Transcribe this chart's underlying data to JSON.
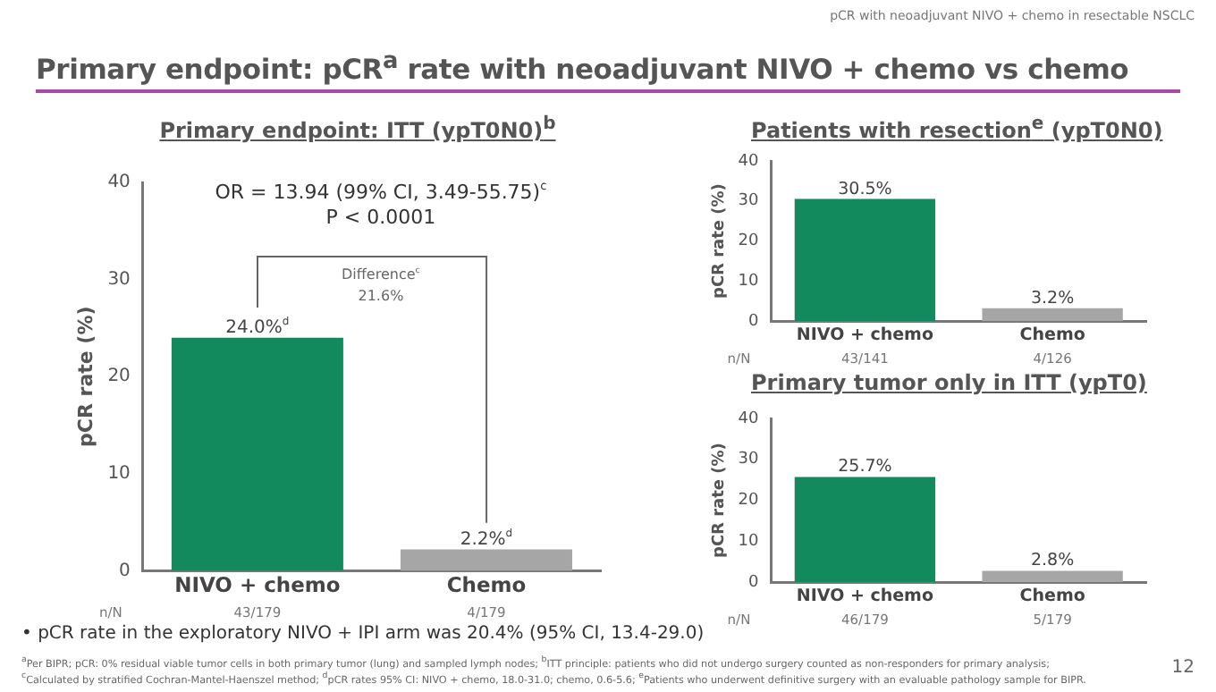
{
  "chart_data": [
    {
      "type": "other",
      "title": "Primary endpoint: pCR$^{a}$ rate with neoadjuvant NIVO + chemo vs chemo",
      "annotations": [
        "pCR with neoadjuvant NIVO + chemo in resectable NSCLC",
        "• pCR rate in the exploratory NIVO + IPI arm was 20.4% (95% CI, 13.4-29.0)",
        "$^{a}$Per BIPR; pCR: 0% residual viable tumor cells in both primary tumor (lung) and sampled lymph nodes; $^{b}$ITT principle: patients who did not undergo surgery counted as non-responders for primary analysis;",
        "$^{c}$Calculated by stratified Cochran-Mantel-Haenszel method; $^{d}$pCR rates 95% CI: NIVO + chemo, 18.0-31.0; chemo, 0.6-5.6; $^{e}$Patients who underwent definitive surgery with an evaluable pathology sample for BIPR.",
        "12"
      ]
    },
    {
      "type": "bar",
      "title": "Primary endpoint: ITT (ypT0N0)$^{b}$",
      "ylabel": "pCR rate (%)",
      "categories": [
        "NIVO + chemo",
        "Chemo"
      ],
      "values": [
        24.0,
        2.2
      ],
      "colors": [
        "#138a5e",
        "#a6a6a6"
      ],
      "value_labels": [
        "24.0%$^{d}$",
        "2.2%$^{d}$"
      ],
      "ylim": [
        0,
        40
      ],
      "yticks": [
        0,
        10,
        20,
        30,
        40
      ],
      "annotations": [
        "n/N",
        "43/179",
        "4/179",
        "OR = 13.94 (99% CI, 3.49-55.75)$^{c}$",
        "P < 0.0001",
        "Difference$^{c}$\n21.6%"
      ]
    },
    {
      "type": "bar",
      "title": "Patients with resection$^{e}$ (ypT0N0)",
      "ylabel": "pCR rate (%)",
      "categories": [
        "NIVO + chemo",
        "Chemo"
      ],
      "values": [
        30.5,
        3.2
      ],
      "colors": [
        "#138a5e",
        "#a6a6a6"
      ],
      "value_labels": [
        "30.5%",
        "3.2%"
      ],
      "ylim": [
        0,
        40
      ],
      "yticks": [
        0,
        10,
        20,
        30,
        40
      ],
      "annotations": [
        "n/N",
        "43/141",
        "4/126"
      ]
    },
    {
      "type": "bar",
      "title": "Primary tumor only in ITT (ypT0)",
      "ylabel": "pCR rate (%)",
      "categories": [
        "NIVO + chemo",
        "Chemo"
      ],
      "values": [
        25.7,
        2.8
      ],
      "colors": [
        "#138a5e",
        "#a6a6a6"
      ],
      "value_labels": [
        "25.7%",
        "2.8%"
      ],
      "ylim": [
        0,
        40
      ],
      "yticks": [
        0,
        10,
        20,
        30,
        40
      ],
      "annotations": [
        "n/N",
        "46/179",
        "5/179"
      ]
    }
  ]
}
